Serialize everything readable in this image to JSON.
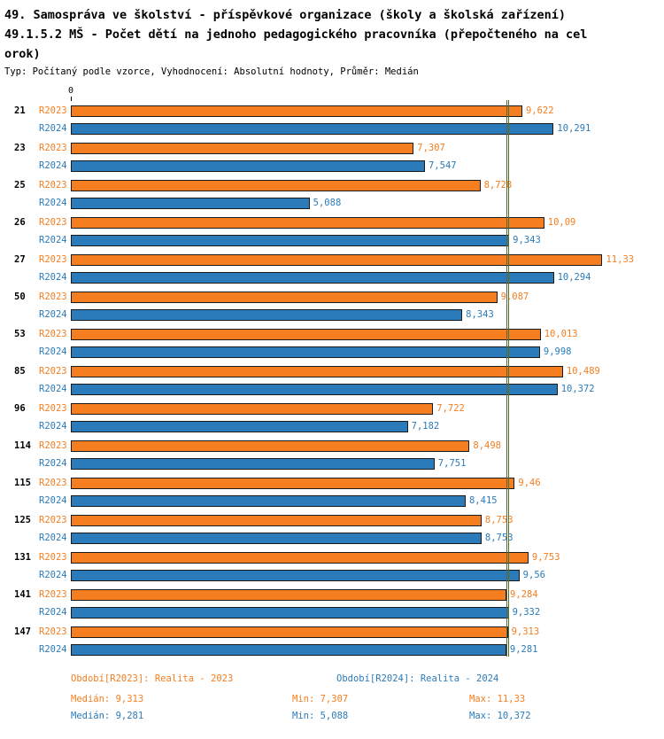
{
  "header": {
    "title_line1": "49. Samospráva ve školství - příspěvkové organizace (školy a školská zařízení)",
    "title_line2": "49.1.5.2 MŠ - Počet dětí na jednoho pedagogického pracovníka (přepočteného na cel",
    "title_line3": "orok)",
    "subtitle": "Typ: Počítaný podle vzorce, Vyhodnocení: Absolutní hodnoty, Průměr: Medián"
  },
  "chart_data": {
    "type": "bar",
    "orientation": "horizontal",
    "axis_origin_label": "0",
    "xlim": [
      0,
      12.3
    ],
    "grid": false,
    "categories": [
      "21",
      "23",
      "25",
      "26",
      "27",
      "50",
      "53",
      "85",
      "96",
      "114",
      "115",
      "125",
      "131",
      "141",
      "147"
    ],
    "series": [
      {
        "name": "R2023",
        "color": "#F57E20",
        "values": [
          9.622,
          7.307,
          8.728,
          10.09,
          11.33,
          9.087,
          10.013,
          10.489,
          7.722,
          8.498,
          9.46,
          8.753,
          9.753,
          9.284,
          9.313
        ],
        "median": 9.313,
        "min": 7.307,
        "max": 11.33
      },
      {
        "name": "R2024",
        "color": "#2B7BBA",
        "values": [
          10.291,
          7.547,
          5.088,
          9.343,
          10.294,
          8.343,
          9.998,
          10.372,
          7.182,
          7.751,
          8.415,
          8.753,
          9.56,
          9.332,
          9.281
        ],
        "median": 9.281,
        "min": 5.088,
        "max": 10.372
      }
    ]
  },
  "legend": {
    "r2023": "Období[R2023]: Realita - 2023",
    "r2024": "Období[R2024]: Realita - 2024"
  },
  "stats": {
    "r2023": {
      "median": "Medián: 9,313",
      "min": "Min: 7,307",
      "max": "Max: 11,33"
    },
    "r2024": {
      "median": "Medián: 9,281",
      "min": "Min: 5,088",
      "max": "Max: 10,372"
    }
  },
  "colors": {
    "orange": "#F57E20",
    "blue": "#2B7BBA",
    "bar_border": "#1a1a1a",
    "median_line": "#556B2F",
    "background": "#ffffff"
  }
}
